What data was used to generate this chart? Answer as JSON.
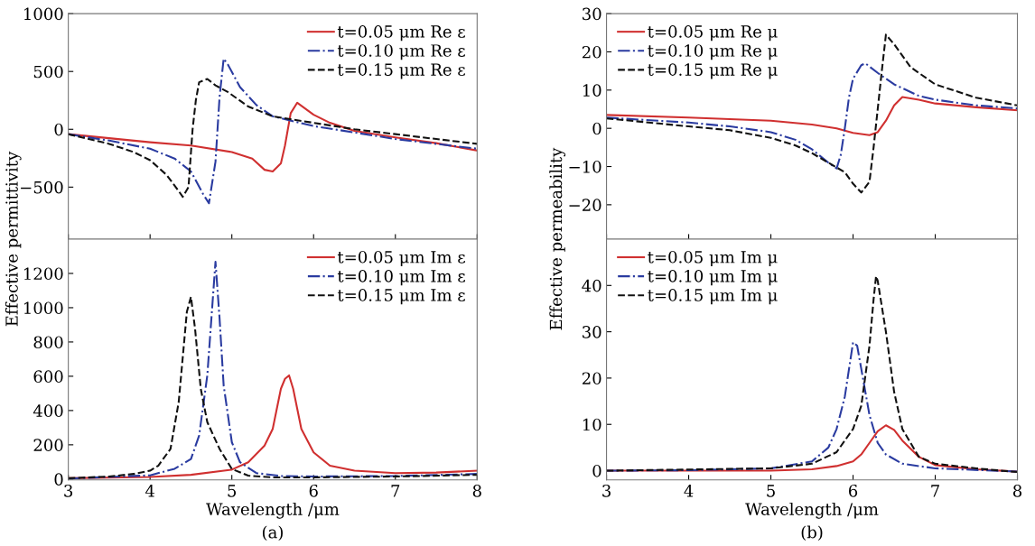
{
  "chart_data": [
    {
      "type": "line",
      "ylabel": "Effective permittivity",
      "xlim": [
        3,
        8
      ],
      "xticks": [
        3,
        4,
        5,
        6,
        7,
        8
      ],
      "ylim": [
        -950,
        1000
      ],
      "yticks": [
        {
          "value": -500,
          "label": "−500"
        },
        0,
        500,
        1000
      ],
      "tick_labels": "y",
      "legend": "top right",
      "grid": false,
      "series": [
        {
          "name": "t=0.05 μm Re ε",
          "color": "#d03030",
          "line_style": "solid",
          "x": [
            3,
            4,
            4.5,
            5,
            5.25,
            5.4,
            5.5,
            5.6,
            5.65,
            5.72,
            5.8,
            6.0,
            6.2,
            6.5,
            7,
            7.5,
            8
          ],
          "values": [
            -42,
            -112,
            -140,
            -197,
            -253,
            -350,
            -365,
            -295,
            -140,
            140,
            230,
            126,
            56,
            -14,
            -70,
            -120,
            -183
          ]
        },
        {
          "name": "t=0.10 μm Re ε",
          "color": "#2a3ba0",
          "line_style": "dashdot",
          "x": [
            3,
            3.5,
            4,
            4.3,
            4.5,
            4.65,
            4.72,
            4.8,
            4.85,
            4.9,
            4.95,
            5.1,
            5.3,
            5.5,
            6,
            6.5,
            7,
            7.5,
            8
          ],
          "values": [
            -42,
            -98,
            -168,
            -253,
            -365,
            -562,
            -640,
            -280,
            280,
            610,
            562,
            365,
            210,
            112,
            28,
            -28,
            -84,
            -126,
            -168
          ]
        },
        {
          "name": "t=0.15 μm Re ε",
          "color": "#111111",
          "line_style": "dashed",
          "x": [
            3,
            3.5,
            3.8,
            4.0,
            4.2,
            4.35,
            4.4,
            4.47,
            4.52,
            4.56,
            4.6,
            4.7,
            4.8,
            4.95,
            5.2,
            5.5,
            6,
            6.5,
            7,
            7.5,
            8
          ],
          "values": [
            -42,
            -126,
            -197,
            -267,
            -393,
            -534,
            -584,
            -500,
            0,
            253,
            407,
            435,
            380,
            323,
            197,
            112,
            56,
            0,
            -42,
            -84,
            -126
          ]
        }
      ]
    },
    {
      "type": "line",
      "xlabel": "Wavelength /μm",
      "annotations": [
        "(a)"
      ],
      "xlim": [
        3,
        8
      ],
      "xticks": [
        3,
        4,
        5,
        6,
        7,
        8
      ],
      "ylim": [
        -5,
        1400
      ],
      "yticks": [
        0,
        200,
        400,
        600,
        800,
        1000,
        1200
      ],
      "legend": "top right",
      "grid": false,
      "series": [
        {
          "name": "t=0.05 μm Im ε",
          "color": "#d03030",
          "line_style": "solid",
          "x": [
            3,
            4,
            4.5,
            5,
            5.2,
            5.4,
            5.5,
            5.6,
            5.65,
            5.7,
            5.75,
            5.85,
            6,
            6.2,
            6.5,
            7,
            7.5,
            8
          ],
          "values": [
            5,
            12,
            25,
            55,
            98,
            195,
            293,
            527,
            585,
            605,
            527,
            293,
            156,
            78,
            49,
            35,
            38,
            49
          ]
        },
        {
          "name": "t=0.10 μm Im ε",
          "color": "#2a3ba0",
          "line_style": "dashdot",
          "x": [
            3,
            4,
            4.3,
            4.5,
            4.6,
            4.7,
            4.75,
            4.8,
            4.85,
            4.9,
            5.0,
            5.1,
            5.3,
            5.6,
            6,
            7,
            8
          ],
          "values": [
            3,
            22,
            60,
            117,
            254,
            605,
            937,
            1268,
            937,
            546,
            215,
            98,
            35,
            18,
            15,
            18,
            30
          ]
        },
        {
          "name": "t=0.15 μm Im ε",
          "color": "#111111",
          "line_style": "dashed",
          "x": [
            3,
            3.5,
            3.8,
            4.0,
            4.1,
            4.25,
            4.35,
            4.45,
            4.5,
            4.55,
            4.62,
            4.7,
            4.85,
            5.0,
            5.2,
            5.5,
            6,
            7,
            8
          ],
          "values": [
            5,
            15,
            30,
            49,
            78,
            176,
            449,
            976,
            1063,
            878,
            527,
            332,
            176,
            59,
            20,
            10,
            10,
            15,
            25
          ]
        }
      ]
    },
    {
      "type": "line",
      "ylabel": "Effective permeability",
      "xlim": [
        3,
        8
      ],
      "xticks": [
        3,
        4,
        5,
        6,
        7,
        8
      ],
      "ylim": [
        -29,
        30
      ],
      "yticks": [
        {
          "value": -20,
          "label": "−20"
        },
        {
          "value": -10,
          "label": "−10"
        },
        0,
        10,
        20,
        30
      ],
      "tick_labels": "y",
      "legend": "top left",
      "grid": false,
      "series": [
        {
          "name": "t=0.05 μm Re μ",
          "color": "#d03030",
          "line_style": "solid",
          "x": [
            3,
            4,
            5,
            5.5,
            5.8,
            6,
            6.2,
            6.3,
            6.4,
            6.5,
            6.6,
            6.8,
            7,
            7.5,
            8
          ],
          "values": [
            3.5,
            2.8,
            2.0,
            1.0,
            0,
            -1.2,
            -1.8,
            -1.0,
            2,
            6,
            8.2,
            7.5,
            6.5,
            5.5,
            4.7
          ]
        },
        {
          "name": "t=0.10 μm Re μ",
          "color": "#2a3ba0",
          "line_style": "dashdot",
          "x": [
            3,
            4,
            4.5,
            5,
            5.3,
            5.5,
            5.7,
            5.8,
            5.85,
            5.9,
            5.95,
            6.0,
            6.1,
            6.15,
            6.3,
            6.5,
            6.8,
            7,
            7.5,
            8
          ],
          "values": [
            2.8,
            1.5,
            0.5,
            -1.0,
            -3.0,
            -5.5,
            -9,
            -10.5,
            -7,
            0,
            8,
            13,
            16.5,
            17,
            14.5,
            11.5,
            8.5,
            7.5,
            6.0,
            5.2
          ]
        },
        {
          "name": "t=0.15 μm Re μ",
          "color": "#111111",
          "line_style": "dashed",
          "x": [
            3,
            4,
            4.5,
            5,
            5.3,
            5.5,
            5.7,
            5.9,
            6.0,
            6.1,
            6.2,
            6.25,
            6.3,
            6.35,
            6.4,
            6.5,
            6.7,
            7,
            7.5,
            8
          ],
          "values": [
            2.6,
            0.5,
            -0.5,
            -2.5,
            -4.5,
            -6.5,
            -9,
            -11.5,
            -14.5,
            -16.8,
            -14,
            -5,
            5,
            15,
            24.5,
            22,
            16,
            11.5,
            8,
            6
          ]
        }
      ]
    },
    {
      "type": "line",
      "xlabel": "Wavelength /μm",
      "annotations": [
        "(b)"
      ],
      "xlim": [
        3,
        8
      ],
      "xticks": [
        3,
        4,
        5,
        6,
        7,
        8
      ],
      "ylim": [
        -2,
        50
      ],
      "yticks": [
        0,
        10,
        20,
        30,
        40
      ],
      "legend": "top left",
      "grid": false,
      "series": [
        {
          "name": "t=0.05 μm Im μ",
          "color": "#d03030",
          "line_style": "solid",
          "x": [
            3,
            5,
            5.5,
            5.8,
            6.0,
            6.1,
            6.2,
            6.3,
            6.4,
            6.5,
            6.6,
            6.8,
            7,
            7.5,
            8
          ],
          "values": [
            0,
            0,
            0.3,
            1,
            2,
            3.5,
            6,
            8.5,
            9.8,
            8.8,
            6.5,
            3,
            1.2,
            0.3,
            -0.2
          ]
        },
        {
          "name": "t=0.10 μm Im μ",
          "color": "#2a3ba0",
          "line_style": "dashdot",
          "x": [
            3,
            4,
            5,
            5.5,
            5.7,
            5.8,
            5.9,
            6.0,
            6.05,
            6.1,
            6.2,
            6.3,
            6.4,
            6.6,
            7,
            8
          ],
          "values": [
            0,
            0.1,
            0.5,
            2,
            5,
            9,
            16,
            27.7,
            27,
            22,
            12,
            6,
            3.5,
            1.5,
            0.5,
            -0.2
          ]
        },
        {
          "name": "t=0.15 μm Im μ",
          "color": "#111111",
          "line_style": "dashed",
          "x": [
            3,
            5,
            5.5,
            5.8,
            6.0,
            6.1,
            6.2,
            6.25,
            6.28,
            6.3,
            6.4,
            6.5,
            6.6,
            6.8,
            7,
            7.5,
            8
          ],
          "values": [
            0,
            0.5,
            1.5,
            4,
            9,
            14,
            27,
            37,
            42,
            41,
            30,
            17,
            9,
            3,
            1.5,
            0.5,
            -0.3
          ]
        }
      ]
    }
  ]
}
